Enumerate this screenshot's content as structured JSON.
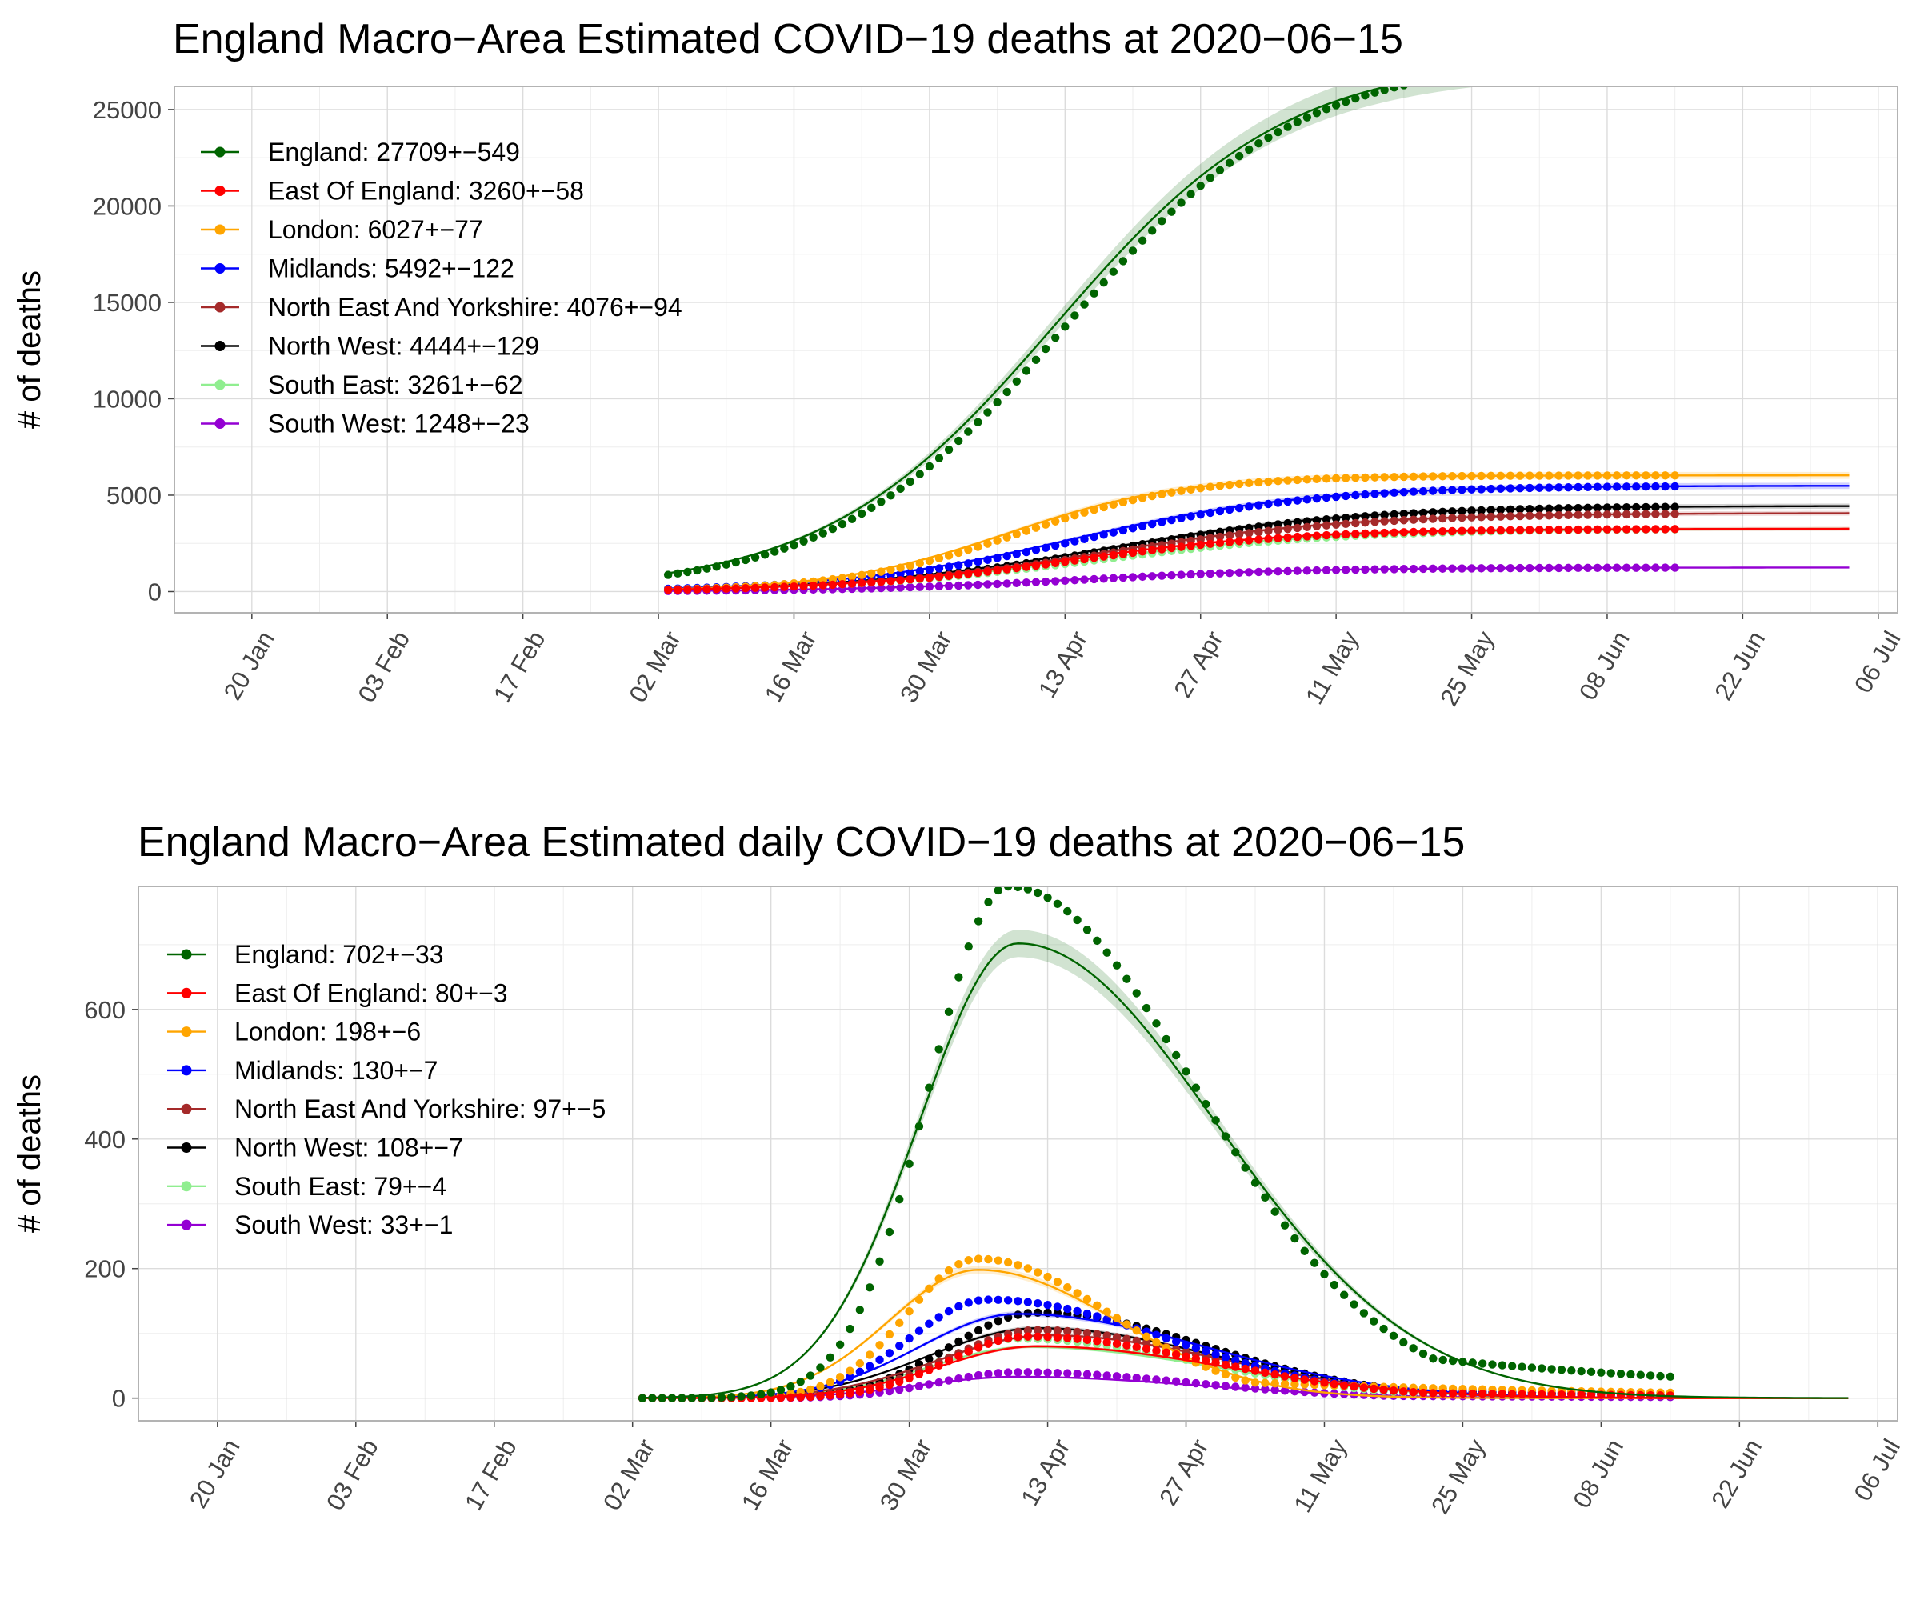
{
  "chart_data": [
    {
      "type": "line",
      "title": "England Macro−Area Estimated COVID−19 deaths at 2020−06−15",
      "ylabel": "# of deaths",
      "xlabel": "",
      "x_ticks": [
        "20 Jan",
        "03 Feb",
        "17 Feb",
        "02 Mar",
        "16 Mar",
        "30 Mar",
        "13 Apr",
        "27 Apr",
        "11 May",
        "25 May",
        "08 Jun",
        "22 Jun",
        "06 Jul"
      ],
      "x_tick_day": [
        0,
        14,
        28,
        42,
        56,
        70,
        84,
        98,
        112,
        126,
        140,
        154,
        168
      ],
      "x_range_day": [
        -8,
        170
      ],
      "y_ticks": [
        "0",
        "5000",
        "10000",
        "15000",
        "20000",
        "25000"
      ],
      "y_tick_values": [
        0,
        5000,
        10000,
        15000,
        20000,
        25000
      ],
      "ylim": [
        -1100,
        26200
      ],
      "grid": true,
      "legend_position": "top-left",
      "obs_day_range": [
        43,
        147
      ],
      "fit_day_range": [
        43,
        165
      ],
      "series": [
        {
          "label": "England: 27709+−549",
          "color": "#006400",
          "final": 27709,
          "mid_day": 83,
          "scale": 12
        },
        {
          "label": "East Of England: 3260+−58",
          "color": "#ff0000",
          "final": 3260,
          "mid_day": 84,
          "scale": 12
        },
        {
          "label": "London: 6027+−77",
          "color": "#ffa500",
          "final": 6027,
          "mid_day": 78,
          "scale": 9
        },
        {
          "label": "Midlands: 5492+−122",
          "color": "#0000ff",
          "final": 5492,
          "mid_day": 85,
          "scale": 12
        },
        {
          "label": "North East And Yorkshire: 4076+−94",
          "color": "#a52a2a",
          "final": 4076,
          "mid_day": 88,
          "scale": 13
        },
        {
          "label": "North West: 4444+−129",
          "color": "#000000",
          "final": 4444,
          "mid_day": 88,
          "scale": 13
        },
        {
          "label": "South East: 3261+−62",
          "color": "#90ee90",
          "final": 3261,
          "mid_day": 86,
          "scale": 13
        },
        {
          "label": "South West: 1248+−23",
          "color": "#9400d3",
          "final": 1248,
          "mid_day": 85,
          "scale": 12
        }
      ]
    },
    {
      "type": "line",
      "title": "England Macro−Area Estimated daily COVID−19 deaths at 2020−06−15",
      "ylabel": "# of deaths",
      "xlabel": "",
      "x_ticks": [
        "20 Jan",
        "03 Feb",
        "17 Feb",
        "02 Mar",
        "16 Mar",
        "30 Mar",
        "13 Apr",
        "27 Apr",
        "11 May",
        "25 May",
        "08 Jun",
        "22 Jun",
        "06 Jul"
      ],
      "x_tick_day": [
        0,
        14,
        28,
        42,
        56,
        70,
        84,
        98,
        112,
        126,
        140,
        154,
        168
      ],
      "x_range_day": [
        -8,
        170
      ],
      "y_ticks": [
        "0",
        "200",
        "400",
        "600"
      ],
      "y_tick_values": [
        0,
        200,
        400,
        600
      ],
      "ylim": [
        -35,
        790
      ],
      "grid": true,
      "legend_position": "top-left",
      "obs_day_range": [
        43,
        147
      ],
      "fit_day_range": [
        43,
        165
      ],
      "series": [
        {
          "label": "England: 702+−33",
          "color": "#006400",
          "peak": 702,
          "peak_day": 81,
          "sd_left": 10,
          "sd_right": 20,
          "obs_peak": 790,
          "obs_peak_day": 80
        },
        {
          "label": "East Of England: 80+−3",
          "color": "#ff0000",
          "peak": 80,
          "peak_day": 83,
          "sd_left": 10,
          "sd_right": 19,
          "obs_peak": 95,
          "obs_peak_day": 82
        },
        {
          "label": "London: 198+−6",
          "color": "#ffa500",
          "peak": 198,
          "peak_day": 77,
          "sd_left": 9,
          "sd_right": 14,
          "obs_peak": 215,
          "obs_peak_day": 77
        },
        {
          "label": "Midlands: 130+−7",
          "color": "#0000ff",
          "peak": 130,
          "peak_day": 81,
          "sd_left": 10,
          "sd_right": 19,
          "obs_peak": 152,
          "obs_peak_day": 78
        },
        {
          "label": "North East And Yorkshire: 97+−5",
          "color": "#a52a2a",
          "peak": 97,
          "peak_day": 84,
          "sd_left": 11,
          "sd_right": 18,
          "obs_peak": 105,
          "obs_peak_day": 83
        },
        {
          "label": "North West: 108+−7",
          "color": "#000000",
          "peak": 108,
          "peak_day": 83,
          "sd_left": 11,
          "sd_right": 18,
          "obs_peak": 132,
          "obs_peak_day": 83
        },
        {
          "label": "South East: 79+−4",
          "color": "#90ee90",
          "peak": 79,
          "peak_day": 82,
          "sd_left": 10,
          "sd_right": 19,
          "obs_peak": 92,
          "obs_peak_day": 81
        },
        {
          "label": "South West: 33+−1",
          "color": "#9400d3",
          "peak": 33,
          "peak_day": 81,
          "sd_left": 10,
          "sd_right": 18,
          "obs_peak": 40,
          "obs_peak_day": 81
        }
      ]
    }
  ]
}
